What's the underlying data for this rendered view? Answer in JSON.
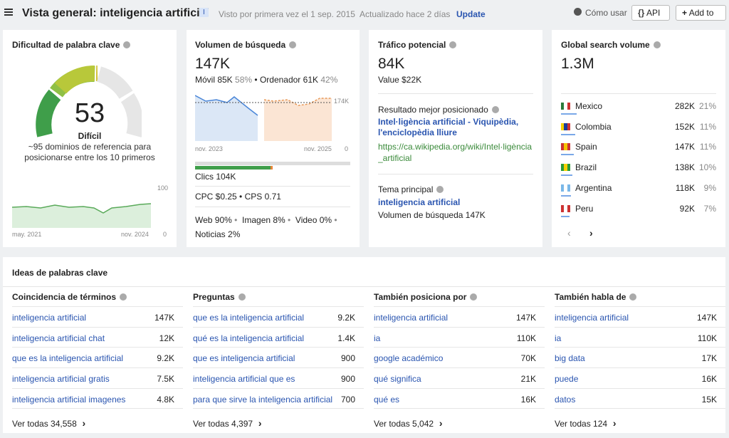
{
  "header": {
    "title": "Vista general: inteligencia artificial",
    "badge": "I",
    "first_seen": "Visto por primera vez el 1 sep. 2015",
    "updated": "Actualizado hace 2 días",
    "update": "Update",
    "how_to": "Cómo usar",
    "api": "API",
    "add_to": "Add to"
  },
  "difficulty": {
    "title": "Dificultad de palabra clave",
    "value": "53",
    "label": "Difícil",
    "description": "~95 dominios de referencia para posicionarse entre los 10 primeros",
    "y_max": "100",
    "y_min": "0",
    "x_start": "may. 2021",
    "x_end": "nov. 2024"
  },
  "volume": {
    "title": "Volumen de búsqueda",
    "value": "147K",
    "mobile": "Móvil 85K",
    "mobile_pct": "58%",
    "desktop": "Ordenador 61K",
    "desktop_pct": "42%",
    "y_max": "174K",
    "y_min": "0",
    "x_start": "nov. 2023",
    "x_end": "nov. 2025",
    "clicks": "Clics 104K",
    "cpc": "CPC $0.25",
    "cps": "CPS 0.71",
    "serp": [
      "Web 90%",
      "Imagen 8%",
      "Video 0%",
      "Noticias 2%"
    ]
  },
  "traffic": {
    "title": "Tráfico potencial",
    "value": "84K",
    "value_usd": "Value $22K",
    "top_label": "Resultado mejor posicionado",
    "top_title": "Intel·ligència artificial - Viquipèdia, l'enciclopèdia lliure",
    "top_url": "https://ca.wikipedia.org/wiki/Intel·ligència_artificial",
    "parent_label": "Tema principal",
    "parent_topic": "inteligencia artificial",
    "parent_volume": "Volumen de búsqueda 147K"
  },
  "global": {
    "title": "Global search volume",
    "value": "1.3M",
    "countries": [
      [
        "Mexico",
        "282K",
        "21%"
      ],
      [
        "Colombia",
        "152K",
        "11%"
      ],
      [
        "Spain",
        "147K",
        "11%"
      ],
      [
        "Brazil",
        "138K",
        "10%"
      ],
      [
        "Argentina",
        "118K",
        "9%"
      ],
      [
        "Peru",
        "92K",
        "7%"
      ]
    ]
  },
  "ideas": {
    "title": "Ideas de palabras clave",
    "columns": [
      {
        "title": "Coincidencia de términos",
        "rows": [
          [
            "inteligencia artificial",
            "147K"
          ],
          [
            "inteligencia artificial chat",
            "12K"
          ],
          [
            "que es la inteligencia artificial",
            "9.2K"
          ],
          [
            "inteligencia artificial gratis",
            "7.5K"
          ],
          [
            "inteligencia artificial imagenes",
            "4.8K"
          ]
        ],
        "footer": "Ver todas 34,558"
      },
      {
        "title": "Preguntas",
        "rows": [
          [
            "que es la inteligencia artificial",
            "9.2K"
          ],
          [
            "qué es la inteligencia artificial",
            "1.4K"
          ],
          [
            "que es inteligencia artificial",
            "900"
          ],
          [
            "inteligencia artificial que es",
            "900"
          ],
          [
            "para que sirve la inteligencia artificial",
            "700"
          ]
        ],
        "footer": "Ver todas 4,397"
      },
      {
        "title": "También posiciona por",
        "rows": [
          [
            "inteligencia artificial",
            "147K"
          ],
          [
            "ia",
            "110K"
          ],
          [
            "google académico",
            "70K"
          ],
          [
            "qué significa",
            "21K"
          ],
          [
            "qué es",
            "16K"
          ]
        ],
        "footer": "Ver todas 5,042"
      },
      {
        "title": "También habla de",
        "rows": [
          [
            "inteligencia artificial",
            "147K"
          ],
          [
            "ia",
            "110K"
          ],
          [
            "big data",
            "17K"
          ],
          [
            "puede",
            "16K"
          ],
          [
            "datos",
            "15K"
          ]
        ],
        "footer": "Ver todas 124"
      }
    ]
  }
}
